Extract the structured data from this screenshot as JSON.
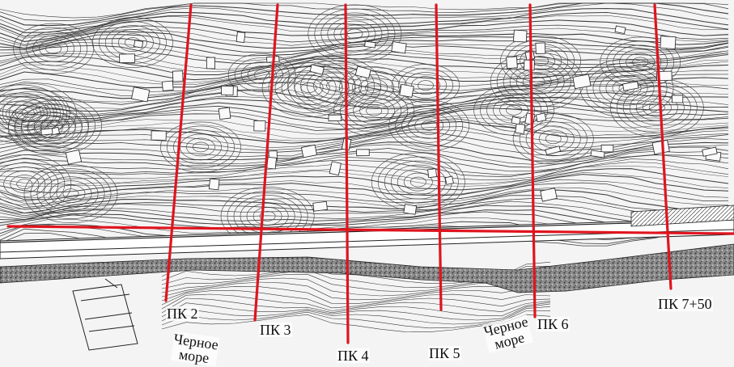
{
  "map": {
    "line_color": "#e0141e",
    "pickets": [
      {
        "label": "ПК 2"
      },
      {
        "label": "ПК 3"
      },
      {
        "label": "ПК 4"
      },
      {
        "label": "ПК 5"
      },
      {
        "label": "ПК 6"
      },
      {
        "label": "ПК 7+50"
      }
    ],
    "sea_label_1": {
      "line1": "Черное",
      "line2": "море"
    },
    "sea_label_2": {
      "line1": "Черное",
      "line2": "море"
    }
  }
}
